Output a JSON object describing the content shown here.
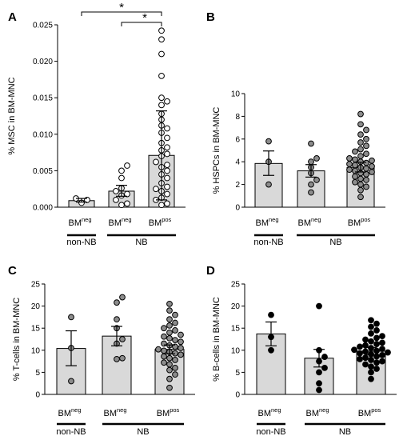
{
  "chart_data": [
    {
      "panel": "A",
      "type": "bar",
      "ylabel": "% MSC in BM-MNC",
      "ylim": [
        0,
        0.025
      ],
      "yticks": [
        "0.000",
        "0.005",
        "0.010",
        "0.015",
        "0.020",
        "0.025"
      ],
      "yticks_values": [
        0,
        0.005,
        0.01,
        0.015,
        0.02,
        0.025
      ],
      "point_style": "open",
      "categories": [
        {
          "base": "BM",
          "sup": "neg"
        },
        {
          "base": "BM",
          "sup": "neg"
        },
        {
          "base": "BM",
          "sup": "pos"
        }
      ],
      "groups": [
        {
          "label": "non-NB",
          "from": 0,
          "to": 0
        },
        {
          "label": "NB",
          "from": 1,
          "to": 2
        }
      ],
      "bars": [
        {
          "mean": 0.0009,
          "err": [
            0.0007,
            0.0012
          ],
          "points": [
            0.0006,
            0.001,
            0.0012
          ]
        },
        {
          "mean": 0.0022,
          "err": [
            0.0015,
            0.003
          ],
          "points": [
            0.0003,
            0.0005,
            0.001,
            0.0016,
            0.0018,
            0.0022,
            0.0026,
            0.004,
            0.005,
            0.0057
          ]
        },
        {
          "mean": 0.0071,
          "err": [
            0.001,
            0.0132
          ],
          "points": [
            0.0003,
            0.0005,
            0.001,
            0.0013,
            0.0018,
            0.0022,
            0.0025,
            0.0028,
            0.0033,
            0.004,
            0.0045,
            0.005,
            0.0055,
            0.0058,
            0.0062,
            0.007,
            0.0073,
            0.0078,
            0.0082,
            0.0088,
            0.0095,
            0.0102,
            0.0108,
            0.0112,
            0.012,
            0.0128,
            0.014,
            0.0145,
            0.015,
            0.018,
            0.021,
            0.023,
            0.0242
          ]
        }
      ],
      "annotations": [
        {
          "text": "*",
          "from": 0,
          "to": 2
        },
        {
          "text": "*",
          "from": 1,
          "to": 2
        }
      ]
    },
    {
      "panel": "B",
      "type": "bar",
      "ylabel": "% HSPCs in BM-MNC",
      "ylim": [
        0,
        10
      ],
      "yticks": [
        "0",
        "2",
        "4",
        "6",
        "8",
        "10"
      ],
      "yticks_values": [
        0,
        2,
        4,
        6,
        8,
        10
      ],
      "point_style": "gray",
      "categories": [
        {
          "base": "BM",
          "sup": "neg"
        },
        {
          "base": "BM",
          "sup": "neg"
        },
        {
          "base": "BM",
          "sup": "pos"
        }
      ],
      "groups": [
        {
          "label": "non-NB",
          "from": 0,
          "to": 0
        },
        {
          "label": "NB",
          "from": 1,
          "to": 2
        }
      ],
      "bars": [
        {
          "mean": 3.85,
          "err": [
            2.8,
            4.95
          ],
          "points": [
            2.0,
            4.0,
            5.8
          ]
        },
        {
          "mean": 3.2,
          "err": [
            2.65,
            3.75
          ],
          "points": [
            1.3,
            2.0,
            2.4,
            3.0,
            3.5,
            4.0,
            4.3,
            5.6
          ]
        },
        {
          "mean": 3.5,
          "err": [
            3.1,
            3.95
          ],
          "points": [
            0.9,
            1.5,
            1.8,
            2.0,
            2.2,
            2.4,
            2.5,
            2.7,
            2.9,
            3.0,
            3.1,
            3.2,
            3.3,
            3.4,
            3.5,
            3.6,
            3.7,
            3.8,
            3.9,
            4.0,
            4.1,
            4.2,
            4.3,
            4.5,
            4.7,
            4.9,
            5.1,
            5.4,
            5.7,
            6.0,
            6.4,
            6.8,
            7.3,
            8.2
          ]
        }
      ],
      "annotations": []
    },
    {
      "panel": "C",
      "type": "bar",
      "ylabel": "% T-cells in BM-MNC",
      "ylim": [
        0,
        25
      ],
      "yticks": [
        "0",
        "5",
        "10",
        "15",
        "20",
        "25"
      ],
      "yticks_values": [
        0,
        5,
        10,
        15,
        20,
        25
      ],
      "point_style": "gray",
      "categories": [
        {
          "base": "BM",
          "sup": "neg"
        },
        {
          "base": "BM",
          "sup": "neg"
        },
        {
          "base": "BM",
          "sup": "pos"
        }
      ],
      "groups": [
        {
          "label": "non-NB",
          "from": 0,
          "to": 0
        },
        {
          "label": "NB",
          "from": 1,
          "to": 2
        }
      ],
      "bars": [
        {
          "mean": 10.4,
          "err": [
            6.5,
            14.4
          ],
          "points": [
            3.0,
            10.5,
            17.5
          ]
        },
        {
          "mean": 13.2,
          "err": [
            11.0,
            15.4
          ],
          "points": [
            8.0,
            8.2,
            11.5,
            12.5,
            15.0,
            17.0,
            20.8,
            22.0
          ]
        },
        {
          "mean": 10.2,
          "err": [
            9.2,
            11.2
          ],
          "points": [
            1.5,
            3.5,
            4.5,
            5.5,
            6.0,
            6.8,
            7.2,
            7.8,
            8.2,
            8.6,
            9.0,
            9.3,
            9.6,
            9.9,
            10.2,
            10.5,
            10.8,
            11.1,
            11.5,
            11.9,
            12.3,
            12.7,
            13.1,
            13.5,
            14.0,
            14.5,
            15.0,
            15.6,
            16.2,
            17.0,
            18.0,
            19.0,
            20.5
          ]
        }
      ],
      "annotations": []
    },
    {
      "panel": "D",
      "type": "bar",
      "ylabel": "% B-cells in BM-MNC",
      "ylim": [
        0,
        25
      ],
      "yticks": [
        "0",
        "5",
        "10",
        "15",
        "20",
        "25"
      ],
      "yticks_values": [
        0,
        5,
        10,
        15,
        20,
        25
      ],
      "point_style": "black",
      "categories": [
        {
          "base": "BM",
          "sup": "neg"
        },
        {
          "base": "BM",
          "sup": "neg"
        },
        {
          "base": "BM",
          "sup": "pos"
        }
      ],
      "groups": [
        {
          "label": "non-NB",
          "from": 0,
          "to": 0
        },
        {
          "label": "NB",
          "from": 1,
          "to": 2
        }
      ],
      "bars": [
        {
          "mean": 13.7,
          "err": [
            11.0,
            16.4
          ],
          "points": [
            10.0,
            13.0,
            18.0
          ]
        },
        {
          "mean": 8.2,
          "err": [
            6.2,
            10.2
          ],
          "points": [
            1.0,
            2.5,
            5.0,
            6.0,
            7.5,
            8.5,
            10.0,
            20.0
          ]
        },
        {
          "mean": 9.8,
          "err": [
            9.0,
            10.6
          ],
          "points": [
            3.5,
            5.0,
            5.8,
            6.3,
            6.8,
            7.2,
            7.5,
            7.8,
            8.0,
            8.3,
            8.6,
            8.9,
            9.1,
            9.3,
            9.5,
            9.7,
            9.9,
            10.1,
            10.3,
            10.5,
            10.8,
            11.1,
            11.4,
            11.7,
            12.0,
            12.4,
            12.8,
            13.2,
            13.8,
            14.5,
            15.3,
            16.0,
            16.8
          ]
        }
      ],
      "annotations": []
    }
  ]
}
